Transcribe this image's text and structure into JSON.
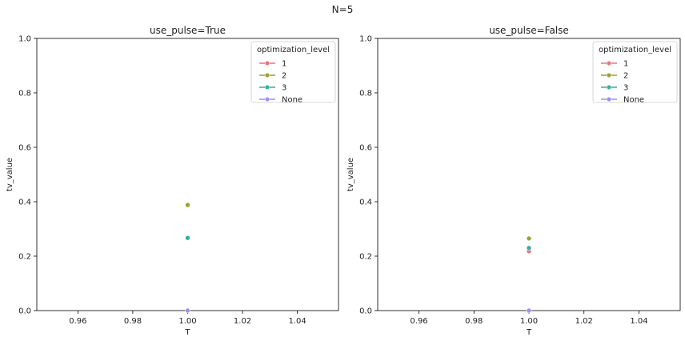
{
  "suptitle": "N=5",
  "chart_data": [
    {
      "type": "line",
      "title": "use_pulse=True",
      "xlabel": "T",
      "ylabel": "tv_value",
      "xlim": [
        0.945,
        1.055
      ],
      "ylim": [
        0.0,
        1.0
      ],
      "xticks": [
        "0.96",
        "0.98",
        "1.00",
        "1.02",
        "1.04"
      ],
      "xtick_values": [
        0.96,
        0.98,
        1.0,
        1.02,
        1.04
      ],
      "yticks": [
        "0.0",
        "0.2",
        "0.4",
        "0.6",
        "0.8",
        "1.0"
      ],
      "ytick_values": [
        0.0,
        0.2,
        0.4,
        0.6,
        0.8,
        1.0
      ],
      "grid": false,
      "legend": {
        "title": "optimization_level",
        "placement": "top-right"
      },
      "series": [
        {
          "name": "1",
          "color": "#e8747c",
          "x": [
            1.0
          ],
          "y": [
            null
          ]
        },
        {
          "name": "2",
          "color": "#97a431",
          "x": [
            1.0
          ],
          "y": [
            0.388
          ]
        },
        {
          "name": "3",
          "color": "#36ada4",
          "x": [
            1.0
          ],
          "y": [
            0.267
          ]
        },
        {
          "name": "None",
          "color": "#a48cf4",
          "x": [
            1.0
          ],
          "y": [
            0.0
          ]
        }
      ]
    },
    {
      "type": "line",
      "title": "use_pulse=False",
      "xlabel": "T",
      "ylabel": "tv_value",
      "xlim": [
        0.945,
        1.055
      ],
      "ylim": [
        0.0,
        1.0
      ],
      "xticks": [
        "0.96",
        "0.98",
        "1.00",
        "1.02",
        "1.04"
      ],
      "xtick_values": [
        0.96,
        0.98,
        1.0,
        1.02,
        1.04
      ],
      "yticks": [
        "0.0",
        "0.2",
        "0.4",
        "0.6",
        "0.8",
        "1.0"
      ],
      "ytick_values": [
        0.0,
        0.2,
        0.4,
        0.6,
        0.8,
        1.0
      ],
      "grid": false,
      "legend": {
        "title": "optimization_level",
        "placement": "top-right"
      },
      "series": [
        {
          "name": "1",
          "color": "#e8747c",
          "x": [
            1.0
          ],
          "y": [
            0.218
          ]
        },
        {
          "name": "2",
          "color": "#97a431",
          "x": [
            1.0
          ],
          "y": [
            0.265
          ]
        },
        {
          "name": "3",
          "color": "#36ada4",
          "x": [
            1.0
          ],
          "y": [
            0.23
          ]
        },
        {
          "name": "None",
          "color": "#a48cf4",
          "x": [
            1.0
          ],
          "y": [
            0.0
          ]
        }
      ]
    }
  ]
}
